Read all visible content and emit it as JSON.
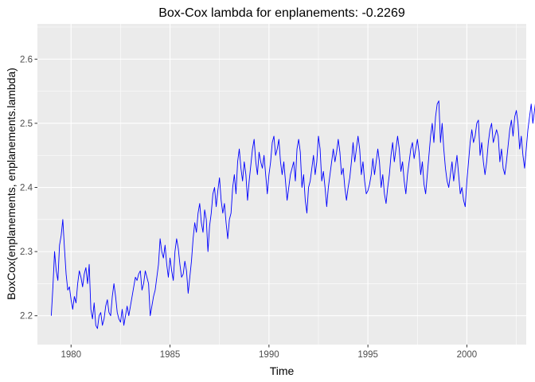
{
  "chart_data": {
    "type": "line",
    "title": "Box-Cox lambda for enplanements:  -0.2269",
    "xlabel": "Time",
    "ylabel": "BoxCox(enplanements, enplanements.lambda)",
    "xlim": [
      1978.3,
      2003.0
    ],
    "ylim": [
      2.155,
      2.655
    ],
    "x_ticks": [
      1980,
      1985,
      1990,
      1995,
      2000
    ],
    "x_tick_labels": [
      "1980",
      "1985",
      "1990",
      "1995",
      "2000"
    ],
    "y_ticks": [
      2.2,
      2.3,
      2.4,
      2.5,
      2.6
    ],
    "y_tick_labels": [
      "2.2",
      "2.3",
      "2.4",
      "2.5",
      "2.6"
    ],
    "grid": true,
    "background": "#ebebeb",
    "grid_color": "#ffffff",
    "line_color": "#0000ff",
    "series": [
      {
        "frequency": "monthly",
        "start": 1979.0,
        "values": [
          2.2,
          2.245,
          2.3,
          2.27,
          2.255,
          2.31,
          2.325,
          2.35,
          2.305,
          2.265,
          2.24,
          2.245,
          2.225,
          2.21,
          2.23,
          2.22,
          2.25,
          2.27,
          2.26,
          2.245,
          2.265,
          2.275,
          2.25,
          2.28,
          2.21,
          2.195,
          2.22,
          2.185,
          2.18,
          2.2,
          2.205,
          2.185,
          2.195,
          2.215,
          2.225,
          2.205,
          2.2,
          2.23,
          2.25,
          2.23,
          2.205,
          2.195,
          2.19,
          2.21,
          2.185,
          2.2,
          2.215,
          2.2,
          2.215,
          2.23,
          2.245,
          2.26,
          2.255,
          2.265,
          2.27,
          2.24,
          2.25,
          2.27,
          2.26,
          2.25,
          2.2,
          2.215,
          2.23,
          2.24,
          2.26,
          2.28,
          2.32,
          2.3,
          2.29,
          2.31,
          2.28,
          2.26,
          2.29,
          2.27,
          2.255,
          2.3,
          2.32,
          2.305,
          2.28,
          2.26,
          2.265,
          2.285,
          2.27,
          2.235,
          2.26,
          2.285,
          2.32,
          2.345,
          2.33,
          2.36,
          2.375,
          2.345,
          2.33,
          2.365,
          2.35,
          2.3,
          2.34,
          2.36,
          2.39,
          2.4,
          2.37,
          2.395,
          2.415,
          2.38,
          2.36,
          2.375,
          2.345,
          2.32,
          2.35,
          2.36,
          2.4,
          2.42,
          2.39,
          2.44,
          2.46,
          2.43,
          2.41,
          2.44,
          2.42,
          2.38,
          2.41,
          2.435,
          2.46,
          2.475,
          2.44,
          2.42,
          2.455,
          2.44,
          2.43,
          2.45,
          2.42,
          2.39,
          2.42,
          2.44,
          2.47,
          2.48,
          2.45,
          2.46,
          2.475,
          2.44,
          2.42,
          2.44,
          2.41,
          2.38,
          2.4,
          2.42,
          2.43,
          2.44,
          2.41,
          2.46,
          2.475,
          2.455,
          2.4,
          2.42,
          2.38,
          2.36,
          2.4,
          2.41,
          2.43,
          2.45,
          2.42,
          2.44,
          2.48,
          2.46,
          2.41,
          2.425,
          2.4,
          2.37,
          2.4,
          2.42,
          2.44,
          2.46,
          2.44,
          2.455,
          2.475,
          2.455,
          2.42,
          2.43,
          2.4,
          2.38,
          2.4,
          2.415,
          2.44,
          2.47,
          2.44,
          2.46,
          2.48,
          2.46,
          2.42,
          2.44,
          2.41,
          2.39,
          2.395,
          2.405,
          2.42,
          2.445,
          2.42,
          2.44,
          2.46,
          2.44,
          2.4,
          2.42,
          2.39,
          2.375,
          2.4,
          2.42,
          2.45,
          2.47,
          2.44,
          2.46,
          2.48,
          2.46,
          2.425,
          2.44,
          2.41,
          2.39,
          2.42,
          2.44,
          2.46,
          2.47,
          2.445,
          2.46,
          2.475,
          2.455,
          2.42,
          2.44,
          2.405,
          2.39,
          2.42,
          2.45,
          2.48,
          2.5,
          2.47,
          2.51,
          2.53,
          2.535,
          2.47,
          2.5,
          2.46,
          2.43,
          2.41,
          2.4,
          2.42,
          2.44,
          2.41,
          2.43,
          2.45,
          2.42,
          2.39,
          2.4,
          2.38,
          2.37,
          2.41,
          2.44,
          2.47,
          2.49,
          2.47,
          2.48,
          2.5,
          2.505,
          2.45,
          2.47,
          2.44,
          2.42,
          2.44,
          2.47,
          2.49,
          2.5,
          2.47,
          2.48,
          2.49,
          2.48,
          2.44,
          2.46,
          2.43,
          2.42,
          2.44,
          2.465,
          2.49,
          2.505,
          2.48,
          2.51,
          2.52,
          2.5,
          2.46,
          2.48,
          2.45,
          2.43,
          2.46,
          2.49,
          2.51,
          2.53,
          2.5,
          2.52,
          2.54,
          2.52,
          2.48,
          2.5,
          2.47,
          2.46,
          2.48,
          2.5,
          2.52,
          2.54,
          2.51,
          2.53,
          2.55,
          2.54,
          2.5,
          2.52,
          2.48,
          2.46,
          2.49,
          2.51,
          2.54,
          2.56,
          2.54,
          2.57,
          2.59,
          2.575,
          2.52,
          2.545,
          2.5,
          2.48,
          2.5,
          2.52,
          2.55,
          2.57,
          2.55,
          2.58,
          2.585,
          2.57,
          2.52,
          2.54,
          2.51,
          2.49,
          2.52,
          2.55,
          2.57,
          2.58,
          2.56,
          2.59,
          2.6,
          2.585,
          2.53,
          2.56,
          2.52,
          2.5,
          2.54,
          2.56,
          2.58,
          2.59,
          2.57,
          2.6,
          2.615,
          2.6,
          2.56,
          2.58,
          2.54,
          2.52,
          2.56,
          2.58,
          2.6,
          2.61,
          2.59,
          2.615,
          2.63,
          2.61,
          2.57,
          2.59,
          2.56,
          2.54,
          2.57,
          2.59,
          2.61,
          2.625,
          2.6,
          2.63,
          2.64,
          2.62,
          2.58,
          2.6,
          2.57,
          2.55,
          2.58,
          2.6,
          2.62,
          2.635,
          2.615,
          2.63,
          2.64,
          2.62,
          2.39,
          2.44,
          2.5,
          2.51,
          2.48,
          2.49,
          2.53,
          2.56,
          2.56,
          2.58,
          2.56,
          2.57,
          2.595
        ]
      }
    ]
  }
}
